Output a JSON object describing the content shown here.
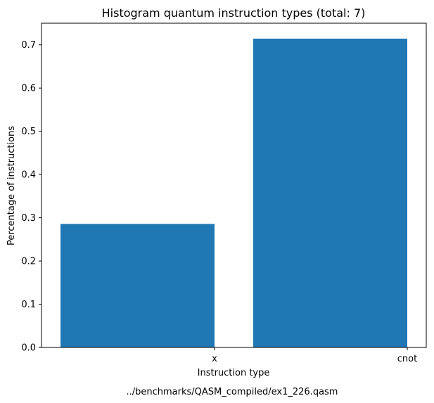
{
  "chart_data": {
    "type": "bar",
    "title": "Histogram quantum instruction types (total: 7)",
    "xlabel": "Instruction type",
    "ylabel": "Percentage of instructions",
    "caption": "../benchmarks/QASM_compiled/ex1_226.qasm",
    "categories": [
      "x",
      "cnot"
    ],
    "values": [
      0.2857,
      0.7143
    ],
    "ylim": [
      0,
      0.75
    ],
    "yticks": [
      "0.0",
      "0.1",
      "0.2",
      "0.3",
      "0.4",
      "0.5",
      "0.6",
      "0.7"
    ],
    "grid": false,
    "bar_color": "#1f77b4"
  }
}
